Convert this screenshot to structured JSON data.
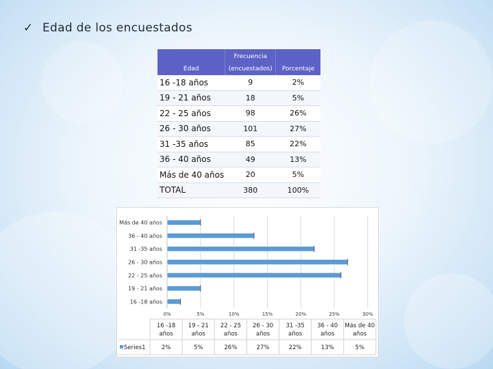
{
  "heading": {
    "check": "✓",
    "text": "Edad de los encuestados"
  },
  "table": {
    "headers": {
      "edad": "Edad",
      "frecuencia_top": "Frecuencia",
      "frecuencia_bottom": "(encuestados)",
      "porcentaje": "Porcentaje"
    },
    "rows": [
      {
        "edad": "16 -18 años",
        "frecuencia": "9",
        "porcentaje": "2%"
      },
      {
        "edad": "19 - 21 años",
        "frecuencia": "18",
        "porcentaje": "5%"
      },
      {
        "edad": "22 - 25 años",
        "frecuencia": "98",
        "porcentaje": "26%"
      },
      {
        "edad": "26 - 30 años",
        "frecuencia": "101",
        "porcentaje": "27%"
      },
      {
        "edad": "31 -35 años",
        "frecuencia": "85",
        "porcentaje": "22%"
      },
      {
        "edad": "36 - 40 años",
        "frecuencia": "49",
        "porcentaje": "13%"
      },
      {
        "edad": "Más de 40 años",
        "frecuencia": "20",
        "porcentaje": "5%"
      },
      {
        "edad": "TOTAL",
        "frecuencia": "380",
        "porcentaje": "100%"
      }
    ]
  },
  "chart_data": {
    "type": "bar",
    "orientation": "horizontal",
    "categories": [
      "16 -18 años",
      "19 - 21 años",
      "22 - 25 años",
      "26 - 30 años",
      "31 -35 años",
      "36 - 40 años",
      "Más de 40 años"
    ],
    "series": [
      {
        "name": "Series1",
        "values": [
          0.02,
          0.05,
          0.26,
          0.27,
          0.22,
          0.13,
          0.05
        ],
        "labels": [
          "2%",
          "5%",
          "26%",
          "27%",
          "22%",
          "13%",
          "5%"
        ]
      }
    ],
    "xlim": [
      0,
      0.3
    ],
    "xticks": [
      0,
      0.05,
      0.1,
      0.15,
      0.2,
      0.25,
      0.3
    ],
    "xtick_labels": [
      "0%",
      "5%",
      "10%",
      "15%",
      "20%",
      "25%",
      "30%"
    ],
    "data_table": true,
    "grid": true,
    "colors": {
      "bar": "#5b9bd5"
    }
  },
  "colors": {
    "table_header": "#5c62c6",
    "bar": "#5b9bd5"
  }
}
